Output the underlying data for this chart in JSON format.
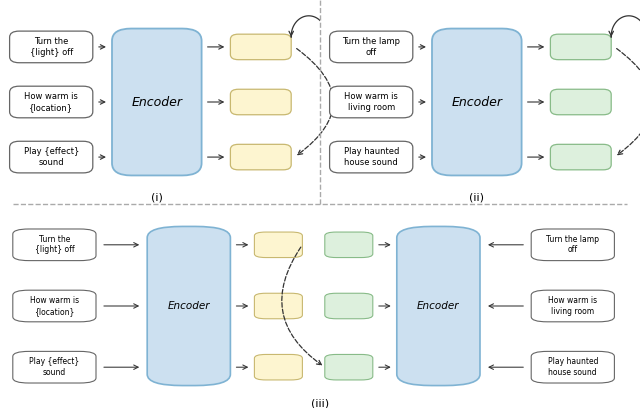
{
  "bg_color": "#ffffff",
  "encoder_fill": "#cce0f0",
  "encoder_edge": "#7fb3d3",
  "text_box_fill": "#ffffff",
  "text_box_edge": "#666666",
  "yellow_box_fill": "#fdf5d0",
  "yellow_box_edge": "#c8b870",
  "green_box_fill": "#ddf0dd",
  "green_box_edge": "#88bb88",
  "arrow_color": "#333333",
  "dashed_color": "#333333",
  "divider_color": "#aaaaaa",
  "label_i": "(i)",
  "label_ii": "(ii)",
  "label_iii": "(iii)",
  "texts_i": [
    "Turn the\n{light} off",
    "How warm is\n{location}",
    "Play {effect}\nsound"
  ],
  "texts_ii": [
    "Turn the lamp\noff",
    "How warm is\nliving room",
    "Play haunted\nhouse sound"
  ],
  "texts_iii_left": [
    "Turn the\n{light} off",
    "How warm is\n{location}",
    "Play {effect}\nsound"
  ],
  "texts_iii_right": [
    "Turn the lamp\noff",
    "How warm is\nliving room",
    "Play haunted\nhouse sound"
  ]
}
